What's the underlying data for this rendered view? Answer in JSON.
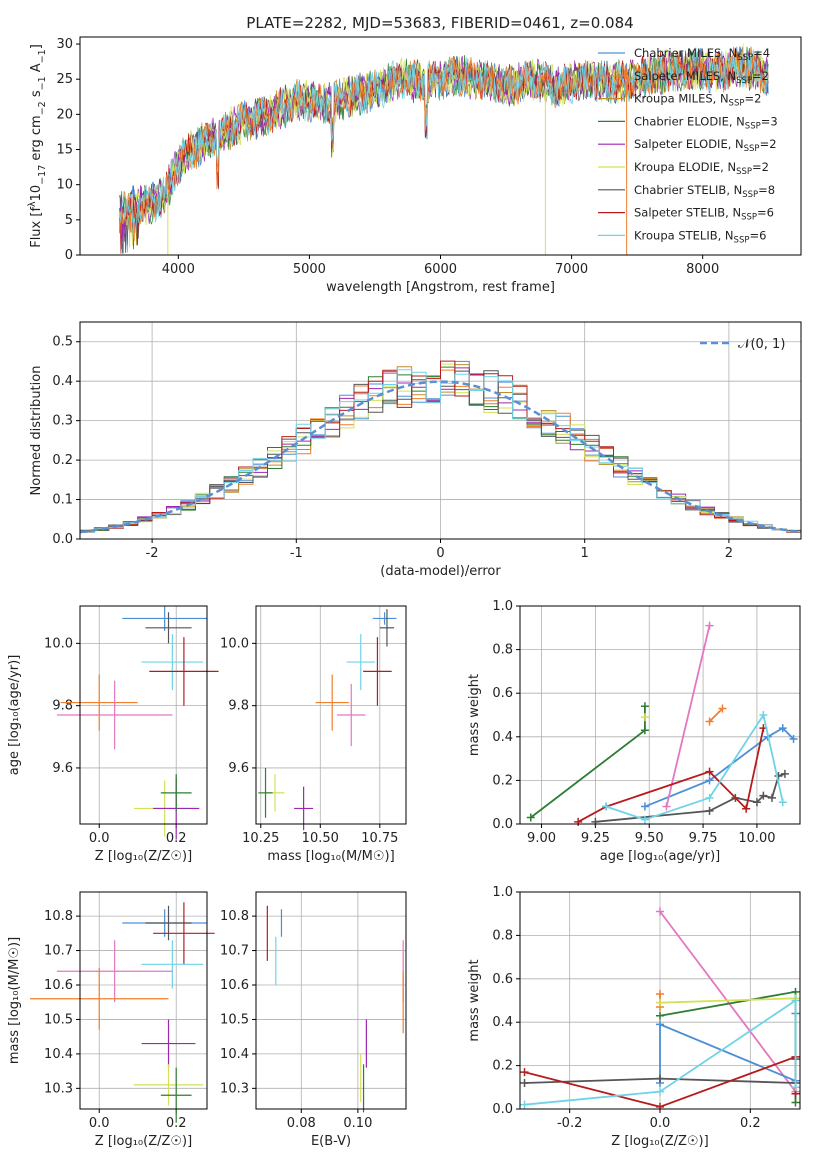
{
  "figure": {
    "title": "PLATE=2282, MJD=53683, FIBERID=0461, z=0.084"
  },
  "colors": {
    "series": [
      "#4c8fd6",
      "#f07e2d",
      "#c08a2e",
      "#2e7d32",
      "#9c27b0",
      "#d4e157",
      "#555555",
      "#b71c1c",
      "#6fd3e8"
    ],
    "pink": "#e377c2",
    "gaussian": "#5a8fd6",
    "grid": "#b0b0b0"
  },
  "chart_data": [
    {
      "id": "spectrum",
      "type": "line",
      "xlabel": "wavelength [Angstrom, rest frame]",
      "ylabel": "Flux [f",
      "ylabel_sub": "λ",
      "ylabel_tail": "10",
      "ylabel_exp": "−17",
      "ylabel_tail2": " erg cm",
      "ylabel_exp2": "−2",
      "ylabel_tail3": " s",
      "ylabel_exp3": "−1",
      "ylabel_tail4": " A",
      "ylabel_exp4": "−1",
      "ylabel_end": "]",
      "xlim": [
        3250,
        8750
      ],
      "ylim": [
        0,
        31
      ],
      "xticks": [
        4000,
        5000,
        6000,
        7000,
        8000
      ],
      "yticks": [
        0,
        5,
        10,
        15,
        20,
        25,
        30
      ],
      "legend_position": "top-right",
      "legend": [
        {
          "base": "Chabrier MILES, N",
          "sub": "SSP",
          "tail": "=4"
        },
        {
          "base": "Salpeter MILES, N",
          "sub": "SSP",
          "tail": "=2"
        },
        {
          "base": "Kroupa MILES, N",
          "sub": "SSP",
          "tail": "=2"
        },
        {
          "base": "Chabrier ELODIE, N",
          "sub": "SSP",
          "tail": "=3"
        },
        {
          "base": "Salpeter ELODIE, N",
          "sub": "SSP",
          "tail": "=2"
        },
        {
          "base": "Kroupa ELODIE, N",
          "sub": "SSP",
          "tail": "=2"
        },
        {
          "base": "Chabrier STELIB, N",
          "sub": "SSP",
          "tail": "=8"
        },
        {
          "base": "Salpeter STELIB, N",
          "sub": "SSP",
          "tail": "=6"
        },
        {
          "base": "Kroupa STELIB, N",
          "sub": "SSP",
          "tail": "=6"
        }
      ],
      "envelope": {
        "x": [
          3550,
          3700,
          3800,
          3900,
          4000,
          4100,
          4300,
          4500,
          4700,
          4900,
          5100,
          5300,
          5500,
          5700,
          5900,
          6100,
          6300,
          6500,
          6700,
          6900,
          7100,
          7300,
          7500,
          7700,
          7900,
          8100,
          8300,
          8500
        ],
        "y": [
          6,
          7,
          7.5,
          8.5,
          13,
          15,
          17,
          19,
          20,
          22,
          21.5,
          22.5,
          23.5,
          25,
          24.5,
          25.5,
          25,
          24,
          25,
          24,
          25,
          24.5,
          25,
          26,
          26.5,
          26,
          27,
          25.5
        ]
      },
      "drops": [
        {
          "x": 3920,
          "y": 0,
          "series": 5
        },
        {
          "x": 6800,
          "y": 0,
          "series": 5
        },
        {
          "x": 7420,
          "y": 0,
          "series": 1
        }
      ]
    },
    {
      "id": "residuals",
      "type": "area",
      "xlabel": "(data-model)/error",
      "ylabel": "Normed distribution",
      "xlim": [
        -2.5,
        2.5
      ],
      "ylim": [
        0,
        0.55
      ],
      "xticks": [
        -2,
        -1,
        0,
        1,
        2
      ],
      "yticks": [
        0.0,
        0.1,
        0.2,
        0.3,
        0.4,
        0.5
      ],
      "legend_position": "top-right",
      "gaussian_label": "𝒩(0, 1)",
      "histogram_bins": 50
    },
    {
      "id": "z-age",
      "type": "scatter",
      "xlabel": "Z [log₁₀(Z/Z☉)]",
      "ylabel": "age  [log₁₀(age/yr)]",
      "xlim": [
        -0.05,
        0.28
      ],
      "ylim": [
        9.42,
        10.12
      ],
      "xticks": [
        0.0,
        0.2
      ],
      "yticks": [
        9.6,
        9.8,
        10.0
      ],
      "errorbars": [
        {
          "c": 0,
          "x": 0.17,
          "xerr": 0.11,
          "y": 10.08,
          "yerr": 0.04
        },
        {
          "c": 6,
          "x": 0.18,
          "xerr": 0.06,
          "y": 10.05,
          "yerr": 0.05
        },
        {
          "c": 8,
          "x": 0.19,
          "xerr": 0.08,
          "y": 9.94,
          "yerr": 0.09
        },
        {
          "c": 7,
          "x": 0.22,
          "xerr": 0.09,
          "y": 9.91,
          "yerr": 0.11
        },
        {
          "c": 1,
          "x": 0.0,
          "xerr": 0.1,
          "y": 9.81,
          "yerr": 0.09
        },
        {
          "c": 9,
          "x": 0.04,
          "xerr": 0.15,
          "y": 9.77,
          "yerr": 0.11
        },
        {
          "c": 5,
          "x": 0.17,
          "xerr": 0.08,
          "y": 9.47,
          "yerr": 0.09
        },
        {
          "c": 4,
          "x": 0.2,
          "xerr": 0.06,
          "y": 9.47,
          "yerr": 0.1
        },
        {
          "c": 3,
          "x": 0.2,
          "xerr": 0.04,
          "y": 9.52,
          "yerr": 0.06
        }
      ]
    },
    {
      "id": "mass-age",
      "type": "scatter",
      "xlabel": "mass [log₁₀(M/M☉)]",
      "ylabel": "",
      "xlim": [
        10.23,
        10.86
      ],
      "ylim": [
        9.42,
        10.12
      ],
      "xticks": [
        10.25,
        10.5,
        10.75
      ],
      "yticks": [
        9.6,
        9.8,
        10.0
      ],
      "errorbars": [
        {
          "c": 0,
          "x": 10.77,
          "xerr": 0.05,
          "y": 10.08,
          "yerr": 0.02
        },
        {
          "c": 6,
          "x": 10.78,
          "xerr": 0.03,
          "y": 10.05,
          "yerr": 0.06
        },
        {
          "c": 8,
          "x": 10.67,
          "xerr": 0.06,
          "y": 9.94,
          "yerr": 0.09
        },
        {
          "c": 7,
          "x": 10.74,
          "xerr": 0.06,
          "y": 9.91,
          "yerr": 0.11
        },
        {
          "c": 1,
          "x": 10.55,
          "xerr": 0.07,
          "y": 9.81,
          "yerr": 0.09
        },
        {
          "c": 9,
          "x": 10.63,
          "xerr": 0.06,
          "y": 9.77,
          "yerr": 0.1
        },
        {
          "c": 5,
          "x": 10.31,
          "xerr": 0.04,
          "y": 9.52,
          "yerr": 0.06
        },
        {
          "c": 4,
          "x": 10.43,
          "xerr": 0.04,
          "y": 9.47,
          "yerr": 0.07
        },
        {
          "c": 3,
          "x": 10.27,
          "xerr": 0.03,
          "y": 9.52,
          "yerr": 0.08
        }
      ]
    },
    {
      "id": "age-massweight",
      "type": "line",
      "xlabel": "age  [log₁₀(age/yr)]",
      "ylabel": "mass weight",
      "xlim": [
        8.9,
        10.2
      ],
      "ylim": [
        0,
        1.0
      ],
      "xticks": [
        9.0,
        9.25,
        9.5,
        9.75,
        10.0
      ],
      "yticks": [
        0.0,
        0.2,
        0.4,
        0.6,
        0.8,
        1.0
      ],
      "series": [
        {
          "c": 0,
          "x": [
            9.48,
            9.78,
            10.05,
            10.12,
            10.17
          ],
          "y": [
            0.08,
            0.2,
            0.4,
            0.44,
            0.39
          ]
        },
        {
          "c": 1,
          "x": [
            9.78,
            9.84
          ],
          "y": [
            0.47,
            0.53
          ]
        },
        {
          "c": 3,
          "x": [
            8.95,
            9.48,
            9.48
          ],
          "y": [
            0.03,
            0.43,
            0.54
          ]
        },
        {
          "c": 9,
          "x": [
            9.58,
            9.78
          ],
          "y": [
            0.08,
            0.91
          ]
        },
        {
          "c": 5,
          "x": [
            9.48
          ],
          "y": [
            0.49
          ]
        },
        {
          "c": 6,
          "x": [
            9.25,
            9.78,
            9.9,
            10.0,
            10.03,
            10.07,
            10.1,
            10.13
          ],
          "y": [
            0.01,
            0.06,
            0.12,
            0.1,
            0.13,
            0.12,
            0.22,
            0.23
          ]
        },
        {
          "c": 7,
          "x": [
            9.17,
            9.3,
            9.78,
            9.95,
            10.03
          ],
          "y": [
            0.01,
            0.08,
            0.24,
            0.07,
            0.44
          ]
        },
        {
          "c": 8,
          "x": [
            9.3,
            9.48,
            9.78,
            10.03,
            10.12
          ],
          "y": [
            0.08,
            0.02,
            0.12,
            0.5,
            0.1
          ]
        }
      ]
    },
    {
      "id": "z-mass",
      "type": "scatter",
      "xlabel": "Z [log₁₀(Z/Z☉)]",
      "ylabel": "mass [log₁₀(M/M☉)]",
      "xlim": [
        -0.05,
        0.28
      ],
      "ylim": [
        10.24,
        10.87
      ],
      "xticks": [
        0.0,
        0.2
      ],
      "yticks": [
        10.3,
        10.4,
        10.5,
        10.6,
        10.7,
        10.8
      ],
      "errorbars": [
        {
          "c": 0,
          "x": 0.17,
          "xerr": 0.11,
          "y": 10.78,
          "yerr": 0.04
        },
        {
          "c": 6,
          "x": 0.18,
          "xerr": 0.06,
          "y": 10.78,
          "yerr": 0.05
        },
        {
          "c": 7,
          "x": 0.22,
          "xerr": 0.08,
          "y": 10.75,
          "yerr": 0.09
        },
        {
          "c": 8,
          "x": 0.19,
          "xerr": 0.08,
          "y": 10.66,
          "yerr": 0.07
        },
        {
          "c": 9,
          "x": 0.04,
          "xerr": 0.15,
          "y": 10.64,
          "yerr": 0.09
        },
        {
          "c": 1,
          "x": 0.0,
          "xerr": 0.18,
          "y": 10.56,
          "yerr": 0.09
        },
        {
          "c": 4,
          "x": 0.18,
          "xerr": 0.07,
          "y": 10.43,
          "yerr": 0.07
        },
        {
          "c": 5,
          "x": 0.18,
          "xerr": 0.09,
          "y": 10.31,
          "yerr": 0.06
        },
        {
          "c": 3,
          "x": 0.2,
          "xerr": 0.04,
          "y": 10.28,
          "yerr": 0.08
        }
      ]
    },
    {
      "id": "ebv-mass",
      "type": "scatter",
      "xlabel": "E(B-V)",
      "ylabel": "",
      "xlim": [
        0.064,
        0.117
      ],
      "ylim": [
        10.24,
        10.87
      ],
      "xticks": [
        0.08,
        0.1
      ],
      "yticks": [
        10.3,
        10.4,
        10.5,
        10.6,
        10.7,
        10.8
      ],
      "errorbars": [
        {
          "c": 0,
          "x": 0.073,
          "y": 10.78,
          "yerr": 0.04
        },
        {
          "c": 7,
          "x": 0.068,
          "y": 10.75,
          "yerr": 0.08
        },
        {
          "c": 8,
          "x": 0.071,
          "y": 10.67,
          "yerr": 0.07
        },
        {
          "c": 9,
          "x": 0.116,
          "y": 10.64,
          "yerr": 0.09
        },
        {
          "c": 1,
          "x": 0.116,
          "y": 10.55,
          "yerr": 0.09
        },
        {
          "c": 4,
          "x": 0.103,
          "y": 10.43,
          "yerr": 0.07
        },
        {
          "c": 5,
          "x": 0.101,
          "y": 10.33,
          "yerr": 0.07
        },
        {
          "c": 3,
          "x": 0.102,
          "y": 10.3,
          "yerr": 0.07
        }
      ]
    },
    {
      "id": "z-massweight",
      "type": "line",
      "xlabel": "Z [log₁₀(Z/Z☉)]",
      "ylabel": "mass weight",
      "xlim": [
        -0.31,
        0.31
      ],
      "ylim": [
        0,
        1.0
      ],
      "xticks": [
        -0.2,
        0.0,
        0.2
      ],
      "yticks": [
        0.0,
        0.2,
        0.4,
        0.6,
        0.8,
        1.0
      ],
      "series": [
        {
          "c": 9,
          "x": [
            0.0,
            0.3
          ],
          "y": [
            0.91,
            0.08
          ]
        },
        {
          "c": 0,
          "x": [
            0.0,
            0.0,
            0.3,
            0.3
          ],
          "y": [
            0.12,
            0.39,
            0.13,
            0.44
          ]
        },
        {
          "c": 1,
          "x": [
            0.0,
            0.0
          ],
          "y": [
            0.47,
            0.53
          ]
        },
        {
          "c": 3,
          "x": [
            0.0,
            0.3,
            0.3
          ],
          "y": [
            0.43,
            0.54,
            0.03
          ]
        },
        {
          "c": 5,
          "x": [
            0.0,
            0.3
          ],
          "y": [
            0.49,
            0.51
          ]
        },
        {
          "c": 6,
          "x": [
            -0.3,
            0.0,
            0.3,
            0.3
          ],
          "y": [
            0.12,
            0.14,
            0.12,
            0.23
          ]
        },
        {
          "c": 7,
          "x": [
            -0.3,
            0.0,
            0.3,
            0.3
          ],
          "y": [
            0.17,
            0.01,
            0.24,
            0.07
          ]
        },
        {
          "c": 8,
          "x": [
            -0.3,
            0.0,
            0.3,
            0.3
          ],
          "y": [
            0.02,
            0.08,
            0.5,
            0.1
          ]
        }
      ]
    }
  ]
}
